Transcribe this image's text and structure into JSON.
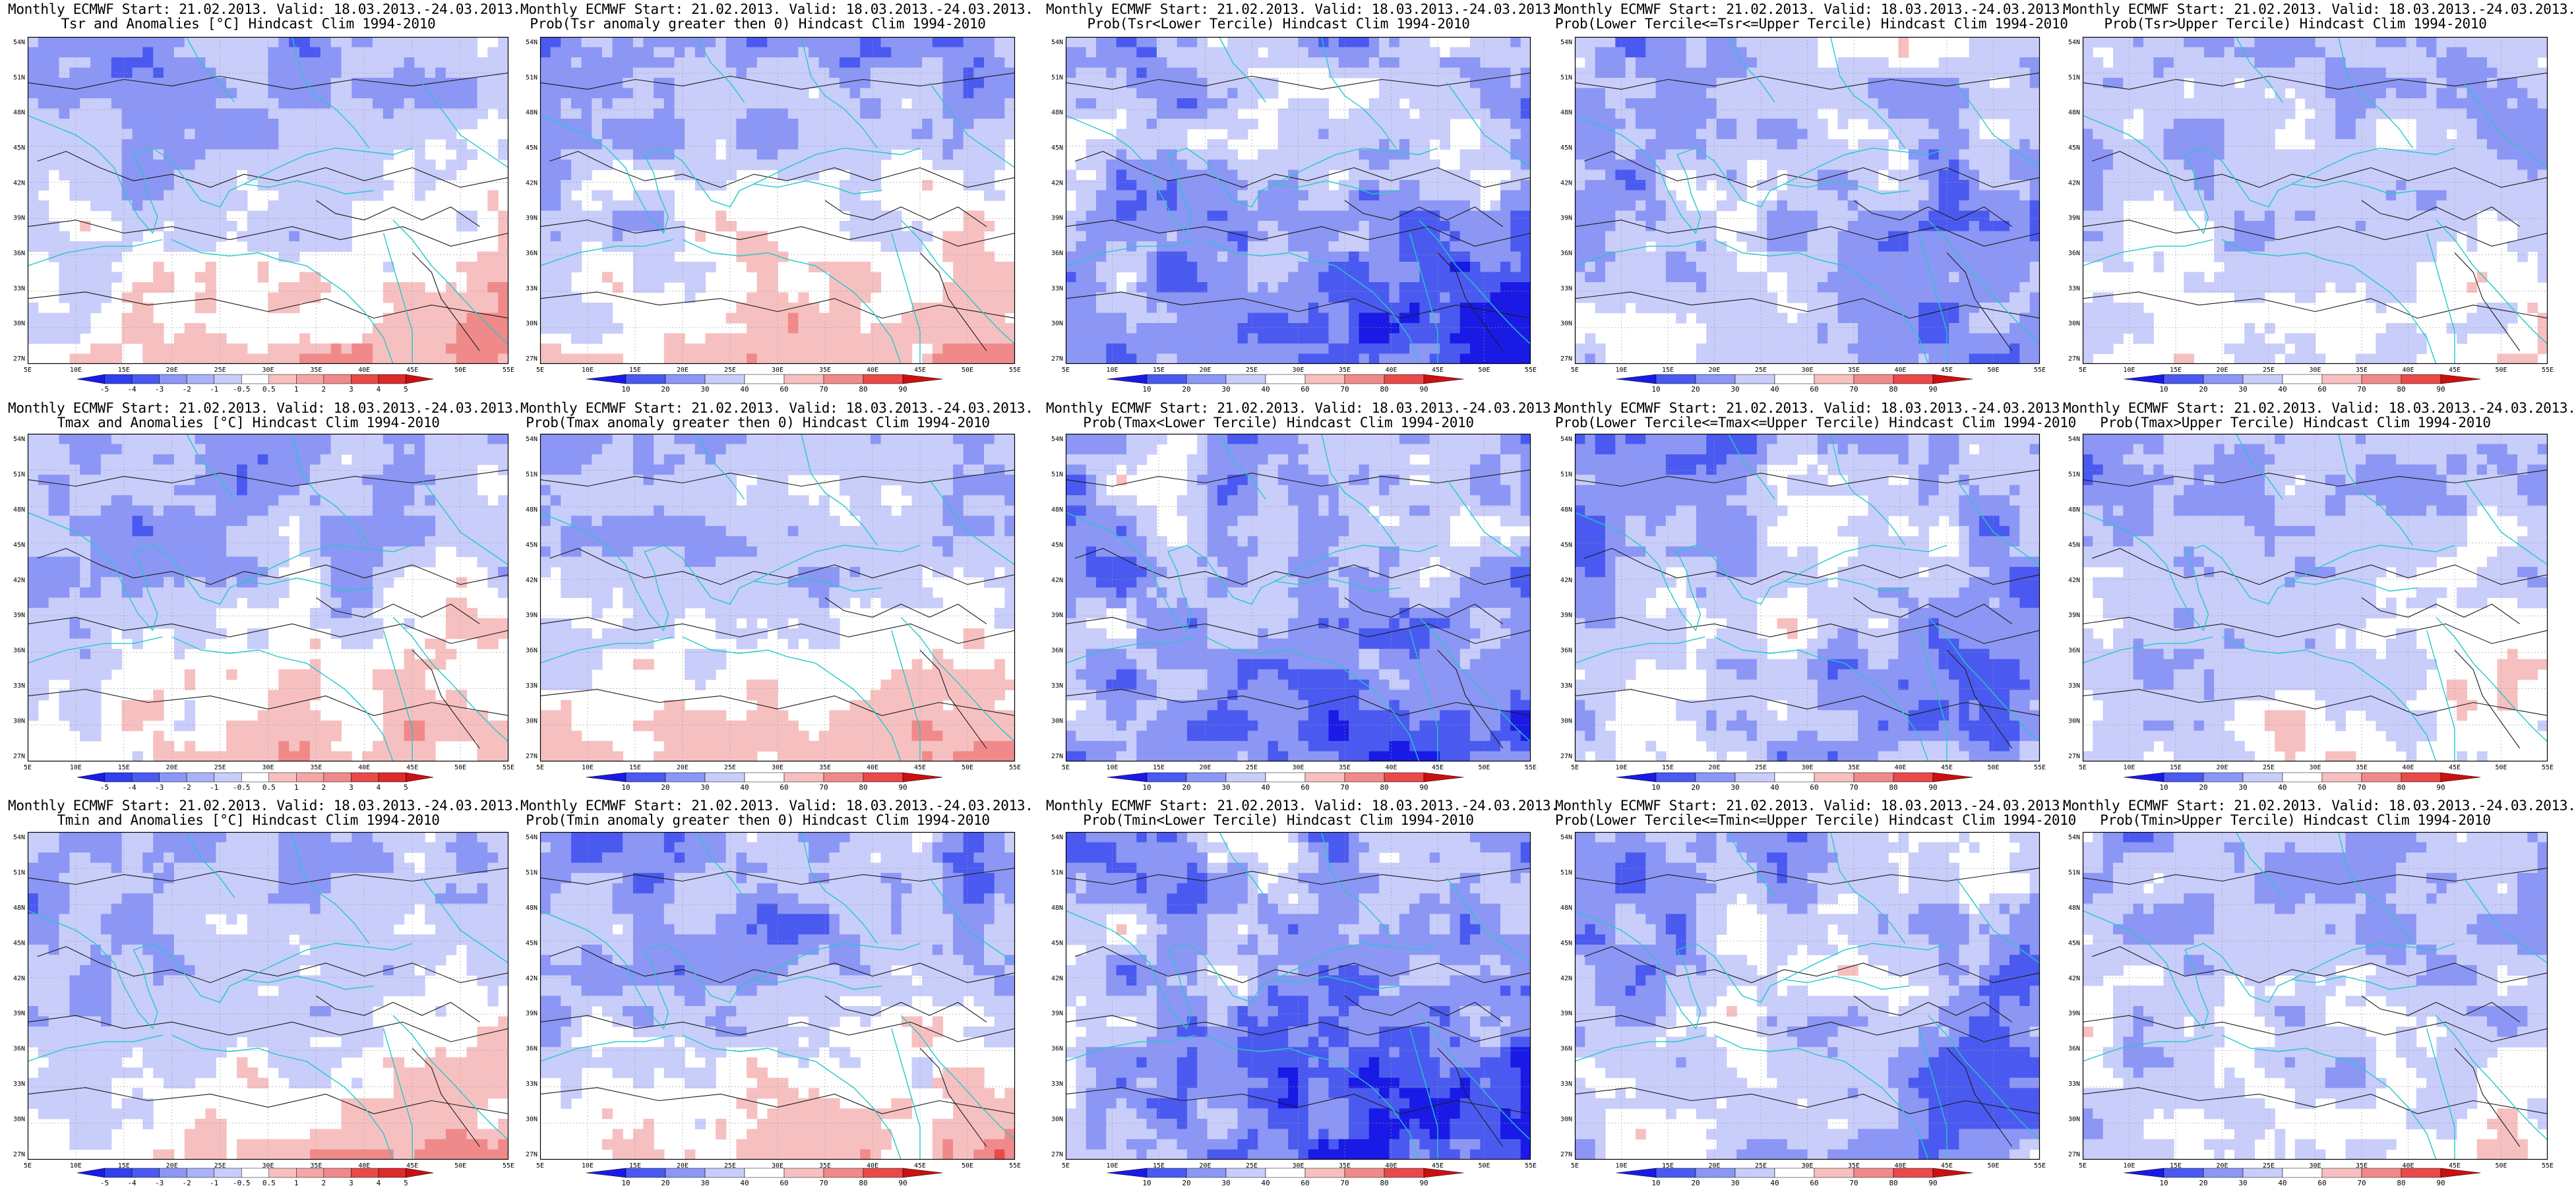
{
  "lat_labels": [
    "54N",
    "51N",
    "48N",
    "45N",
    "42N",
    "39N",
    "36N",
    "33N",
    "30N",
    "27N"
  ],
  "lon_labels": [
    "5E",
    "10E",
    "15E",
    "20E",
    "25E",
    "30E",
    "35E",
    "40E",
    "45E",
    "50E",
    "55E"
  ],
  "colorbars": {
    "anom": {
      "labels": [
        "-5",
        "-4",
        "-3",
        "-2",
        "-1",
        "-0.5",
        "0.5",
        "1",
        "2",
        "3",
        "4",
        "5"
      ]
    },
    "prob": {
      "labels": [
        "10",
        "20",
        "30",
        "40",
        "60",
        "70",
        "80",
        "90"
      ]
    }
  },
  "colors": {
    "deep_blue": "#1a1ae6",
    "blue": "#4a5af0",
    "mid_blue": "#8c96f5",
    "light_blue": "#c8cdfa",
    "white": "#ffffff",
    "light_red": "#f7c0c0",
    "mid_red": "#f08a8a",
    "red": "#e84a4a",
    "deep_red": "#cc1010",
    "coast": "#22c9c9",
    "contour": "#1a1a1a"
  },
  "panels": [
    {
      "id": "r1c1",
      "line1": "Monthly ECMWF Start: 21.02.2013. Valid: 18.03.2013.-24.03.2013.",
      "line2": "Tsr and Anomalies [°C] Hindcast Clim 1994-2010",
      "bar": "anom",
      "scheme": "anom",
      "tint": 0.6
    },
    {
      "id": "r1c2",
      "line1": "Monthly ECMWF Start: 21.02.2013. Valid: 18.03.2013.-24.03.2013.",
      "line2": "Prob(Tsr anomaly greater then 0) Hindcast Clim 1994-2010",
      "bar": "prob",
      "scheme": "probhigh",
      "tint": 0.65
    },
    {
      "id": "r1c3",
      "line1": "Monthly ECMWF Start: 21.02.2013. Valid: 18.03.2013.-24.03.2013.",
      "line2": "Prob(Tsr<Lower Tercile) Hindcast Clim 1994-2010",
      "bar": "prob",
      "scheme": "problow",
      "tint": 0.85
    },
    {
      "id": "r1c4",
      "line1": "Monthly ECMWF Start: 21.02.2013. Valid: 18.03.2013.-24.03.2013.",
      "line2": "Prob(Lower Tercile<=Tsr<=Upper Tercile) Hindcast Clim 1994-2010",
      "bar": "prob",
      "scheme": "probmid",
      "tint": 0.7
    },
    {
      "id": "r1c5",
      "line1": "Monthly ECMWF Start: 21.02.2013. Valid: 18.03.2013.-24.03.2013.",
      "line2": "Prob(Tsr>Upper Tercile) Hindcast Clim 1994-2010",
      "bar": "prob",
      "scheme": "probup",
      "tint": 0.55
    },
    {
      "id": "r2c1",
      "line1": "Monthly ECMWF Start: 21.02.2013. Valid: 18.03.2013.-24.03.2013.",
      "line2": "Tmax and Anomalies [°C] Hindcast Clim 1994-2010",
      "bar": "anom",
      "scheme": "anom",
      "tint": 0.6
    },
    {
      "id": "r2c2",
      "line1": "Monthly ECMWF Start: 21.02.2013. Valid: 18.03.2013.-24.03.2013.",
      "line2": "Prob(Tmax anomaly greater then 0) Hindcast Clim 1994-2010",
      "bar": "prob",
      "scheme": "probhigh",
      "tint": 0.55
    },
    {
      "id": "r2c3",
      "line1": "Monthly ECMWF Start: 21.02.2013. Valid: 18.03.2013.-24.03.2013.",
      "line2": "Prob(Tmax<Lower Tercile) Hindcast Clim 1994-2010",
      "bar": "prob",
      "scheme": "problow",
      "tint": 0.8
    },
    {
      "id": "r2c4",
      "line1": "Monthly ECMWF Start: 21.02.2013. Valid: 18.03.2013.-24.03.2013.",
      "line2": "Prob(Lower Tercile<=Tmax<=Upper Tercile) Hindcast Clim 1994-2010",
      "bar": "prob",
      "scheme": "probmid",
      "tint": 0.7
    },
    {
      "id": "r2c5",
      "line1": "Monthly ECMWF Start: 21.02.2013. Valid: 18.03.2013.-24.03.2013.",
      "line2": "Prob(Tmax>Upper Tercile) Hindcast Clim 1994-2010",
      "bar": "prob",
      "scheme": "probup",
      "tint": 0.6
    },
    {
      "id": "r3c1",
      "line1": "Monthly ECMWF Start: 21.02.2013. Valid: 18.03.2013.-24.03.2013.",
      "line2": "Tmin and Anomalies [°C] Hindcast Clim 1994-2010",
      "bar": "anom",
      "scheme": "anom",
      "tint": 0.6
    },
    {
      "id": "r3c2",
      "line1": "Monthly ECMWF Start: 21.02.2013. Valid: 18.03.2013.-24.03.2013.",
      "line2": "Prob(Tmin anomaly greater then 0) Hindcast Clim 1994-2010",
      "bar": "prob",
      "scheme": "probhigh",
      "tint": 0.75
    },
    {
      "id": "r3c3",
      "line1": "Monthly ECMWF Start: 21.02.2013. Valid: 18.03.2013.-24.03.2013.",
      "line2": "Prob(Tmin<Lower Tercile) Hindcast Clim 1994-2010",
      "bar": "prob",
      "scheme": "problow",
      "tint": 0.85
    },
    {
      "id": "r3c4",
      "line1": "Monthly ECMWF Start: 21.02.2013. Valid: 18.03.2013.-24.03.2013.",
      "line2": "Prob(Lower Tercile<=Tmin<=Upper Tercile) Hindcast Clim 1994-2010",
      "bar": "prob",
      "scheme": "probmid",
      "tint": 0.7
    },
    {
      "id": "r3c5",
      "line1": "Monthly ECMWF Start: 21.02.2013. Valid: 18.03.2013.-24.03.2013.",
      "line2": "Prob(Tmin>Upper Tercile) Hindcast Clim 1994-2010",
      "bar": "prob",
      "scheme": "probup",
      "tint": 0.6
    }
  ]
}
